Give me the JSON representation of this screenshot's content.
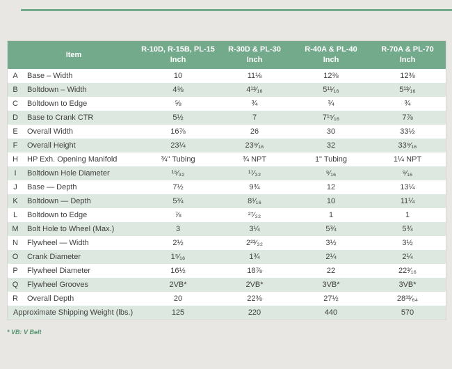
{
  "page": {
    "footnote": "* VB: V Belt"
  },
  "table": {
    "item_header": "Item",
    "columns": [
      {
        "model": "R-10D, R-15B, PL-15",
        "unit": "Inch"
      },
      {
        "model": "R-30D & PL-30",
        "unit": "Inch"
      },
      {
        "model": "R-40A & PL-40",
        "unit": "Inch"
      },
      {
        "model": "R-70A & PL-70",
        "unit": "Inch"
      }
    ],
    "rows": [
      {
        "letter": "A",
        "item": "Base – Width",
        "values": [
          "10",
          "11⅛",
          "12⅜",
          "12⅜"
        ]
      },
      {
        "letter": "B",
        "item": "Boltdown – Width",
        "values": [
          "4⅜",
          "4¹³⁄₁₆",
          "5¹¹⁄₁₆",
          "5¹³⁄₁₆"
        ]
      },
      {
        "letter": "C",
        "item": "Boltdown to Edge",
        "values": [
          "⅝",
          "¾",
          "¾",
          "¾"
        ]
      },
      {
        "letter": "D",
        "item": "Base to Crank CTR",
        "values": [
          "5½",
          "7",
          "7¹⁵⁄₁₆",
          "7⅞"
        ]
      },
      {
        "letter": "E",
        "item": "Overall Width",
        "values": [
          "16⅞",
          "26",
          "30",
          "33½"
        ]
      },
      {
        "letter": "F",
        "item": "Overall Height",
        "values": [
          "23¼",
          "23⁹⁄₁₆",
          "32",
          "33⁹⁄₁₆"
        ]
      },
      {
        "letter": "H",
        "item": "HP Exh. Opening Manifold",
        "values": [
          "¾\" Tubing",
          "¾ NPT",
          "1\" Tubing",
          "1¼ NPT"
        ]
      },
      {
        "letter": "I",
        "item": "Boltdown Hole Diameter",
        "values": [
          "¹⁵⁄₃₂",
          "¹⁷⁄₃₂",
          "⁹⁄₁₆",
          "⁹⁄₁₆"
        ]
      },
      {
        "letter": "J",
        "item": "Base — Depth",
        "values": [
          "7½",
          "9¾",
          "12",
          "13¼"
        ]
      },
      {
        "letter": "K",
        "item": "Boltdown — Depth",
        "values": [
          "5¾",
          "8¹⁄₁₆",
          "10",
          "11¼"
        ]
      },
      {
        "letter": "L",
        "item": "Boltdown to Edge",
        "values": [
          "⅞",
          "²⁷⁄₃₂",
          "1",
          "1"
        ]
      },
      {
        "letter": "M",
        "item": "Bolt Hole to Wheel (Max.)",
        "values": [
          "3",
          "3¼",
          "5¾",
          "5¾"
        ]
      },
      {
        "letter": "N",
        "item": "Flywheel — Width",
        "values": [
          "2½",
          "2²³⁄₃₂",
          "3½",
          "3½"
        ]
      },
      {
        "letter": "O",
        "item": "Crank Diameter",
        "values": [
          "1⁵⁄₁₆",
          "1¾",
          "2¼",
          "2¼"
        ]
      },
      {
        "letter": "P",
        "item": "Flywheel Diameter",
        "values": [
          "16½",
          "18⅞",
          "22",
          "22³⁄₁₆"
        ]
      },
      {
        "letter": "Q",
        "item": "Flywheel Grooves",
        "values": [
          "2VB*",
          "2VB*",
          "3VB*",
          "3VB*"
        ]
      },
      {
        "letter": "R",
        "item": "Overall Depth",
        "values": [
          "20",
          "22⅜",
          "27½",
          "28³³⁄₆₄"
        ]
      }
    ],
    "summary_row": {
      "label": "Approximate Shipping Weight (lbs.)",
      "values": [
        "125",
        "220",
        "440",
        "570"
      ]
    }
  },
  "colors": {
    "header_green": "#74aa8c",
    "stripe_green": "#dde8e1",
    "footnote_green": "#51956f",
    "page_background": "#e9e7e4"
  }
}
